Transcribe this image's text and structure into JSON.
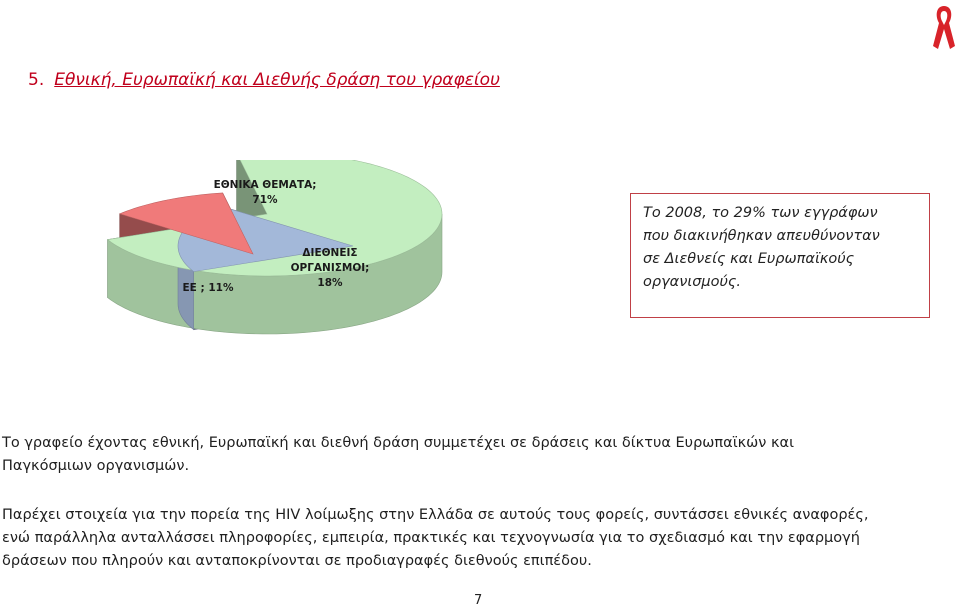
{
  "header": {
    "section_number": "5.",
    "section_title": "Εθνική, Ευρωπαϊκή και Διεθνής δράση του γραφείου"
  },
  "ribbon": {
    "icon": "aids-ribbon-icon",
    "color": "#d8232a"
  },
  "chart_data": {
    "type": "pie",
    "style": "3d-exploded",
    "categories": [
      "ΕΘΝΙΚΑ ΘΕΜΑΤΑ",
      "ΔΙΕΘΝΕΙΣ ΟΡΓΑΝΙΣΜΟΙ",
      "ΕΕ"
    ],
    "values": [
      71,
      18,
      11
    ],
    "unit": "%",
    "colors": [
      "#c3eec0",
      "#a3b8d9",
      "#f07a7a"
    ],
    "labels": [
      {
        "line1": "ΕΘΝΙΚΑ ΘΕΜΑΤΑ;",
        "line2": "71%"
      },
      {
        "line1": "ΔΙΕΘΝΕΙΣ",
        "line2": "ΟΡΓΑΝΙΣΜΟΙ;",
        "line3": "18%"
      },
      {
        "line1": "ΕΕ ; 11%"
      }
    ]
  },
  "callout": {
    "border_color": "#c04046",
    "lines": [
      "Το 2008, το 29%  των εγγράφων",
      "που διακινήθηκαν απευθύνονταν",
      "σε Διεθνείς και Ευρωπαϊκούς",
      "οργανισμούς."
    ]
  },
  "paragraphs": {
    "p1": [
      "Το γραφείο έχοντας εθνική, Ευρωπαϊκή και διεθνή δράση συμμετέχει σε δράσεις και δίκτυα Ευρωπαϊκών και",
      "Παγκόσμιων οργανισμών."
    ],
    "p2": [
      "Παρέχει στοιχεία για την πορεία της HIV λοίμωξης στην Ελλάδα σε αυτούς τους φορείς, συντάσσει εθνικές αναφορές,",
      "ενώ παράλληλα ανταλλάσσει πληροφορίες, εμπειρία, πρακτικές και τεχνογνωσία για το σχεδιασμό και την εφαρμογή",
      "δράσεων που πληρούν και ανταποκρίνονται σε προδιαγραφές διεθνούς επιπέδου."
    ]
  },
  "footer": {
    "page_number": "7"
  }
}
